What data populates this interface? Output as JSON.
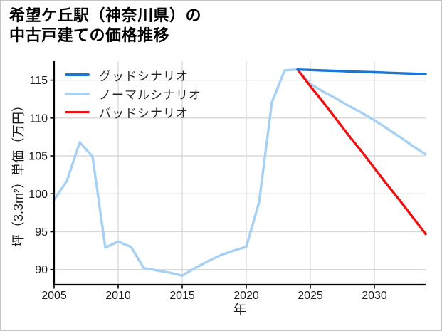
{
  "title": {
    "line1": "希望ケ丘駅（神奈川県）の",
    "line2": "中古戸建ての価格推移"
  },
  "chart_data": {
    "type": "line",
    "title": "希望ケ丘駅（神奈川県）の中古戸建ての価格推移",
    "xlabel": "年",
    "ylabel": "坪（3.3m²）単価（万円）",
    "x_ticks": [
      2005,
      2010,
      2015,
      2020,
      2025,
      2030
    ],
    "y_ticks": [
      90,
      95,
      100,
      105,
      110,
      115
    ],
    "xlim": [
      2005,
      2034
    ],
    "ylim": [
      88,
      117.5
    ],
    "grid": true,
    "legend_position": "upper-left",
    "series": [
      {
        "name": "グッドシナリオ",
        "key": "good-scenario",
        "color": "#1976d2",
        "line_width": 3.4,
        "x": [
          2024,
          2025,
          2026,
          2027,
          2028,
          2029,
          2030,
          2031,
          2032,
          2033,
          2034
        ],
        "values": [
          116.4,
          116.34,
          116.28,
          116.22,
          116.16,
          116.1,
          116.04,
          115.98,
          115.92,
          115.86,
          115.8
        ]
      },
      {
        "name": "ノーマルシナリオ",
        "key": "normal-scenario",
        "color": "#a7d1f4",
        "line_width": 3.4,
        "x": [
          2005,
          2006,
          2007,
          2008,
          2009,
          2010,
          2011,
          2012,
          2013,
          2014,
          2015,
          2016,
          2017,
          2018,
          2019,
          2020,
          2021,
          2022,
          2023,
          2024,
          2025,
          2026,
          2027,
          2028,
          2029,
          2030,
          2031,
          2032,
          2033,
          2034
        ],
        "values": [
          99.2,
          101.7,
          106.8,
          104.9,
          92.9,
          93.7,
          93.0,
          90.2,
          89.9,
          89.6,
          89.2,
          90.2,
          91.1,
          91.9,
          92.5,
          93.0,
          98.9,
          112.1,
          116.3,
          116.4,
          114.5,
          113.5,
          112.6,
          111.6,
          110.7,
          109.7,
          108.6,
          107.5,
          106.3,
          105.2
        ]
      },
      {
        "name": "バッドシナリオ",
        "key": "bad-scenario",
        "color": "#ee1111",
        "line_width": 3.4,
        "x": [
          2024,
          2025,
          2026,
          2027,
          2028,
          2029,
          2030,
          2031,
          2032,
          2033,
          2034
        ],
        "values": [
          116.4,
          114.2,
          112.1,
          109.9,
          107.7,
          105.6,
          103.4,
          101.2,
          99.1,
          96.9,
          94.7
        ]
      }
    ],
    "draw_order": [
      1,
      2,
      0
    ],
    "style": {
      "grid_color": "#d8d8d8",
      "spine_color": "#000000",
      "tick_label_color": "#1a1a1a",
      "tick_font_size": 16,
      "background": "#ffffff"
    }
  }
}
